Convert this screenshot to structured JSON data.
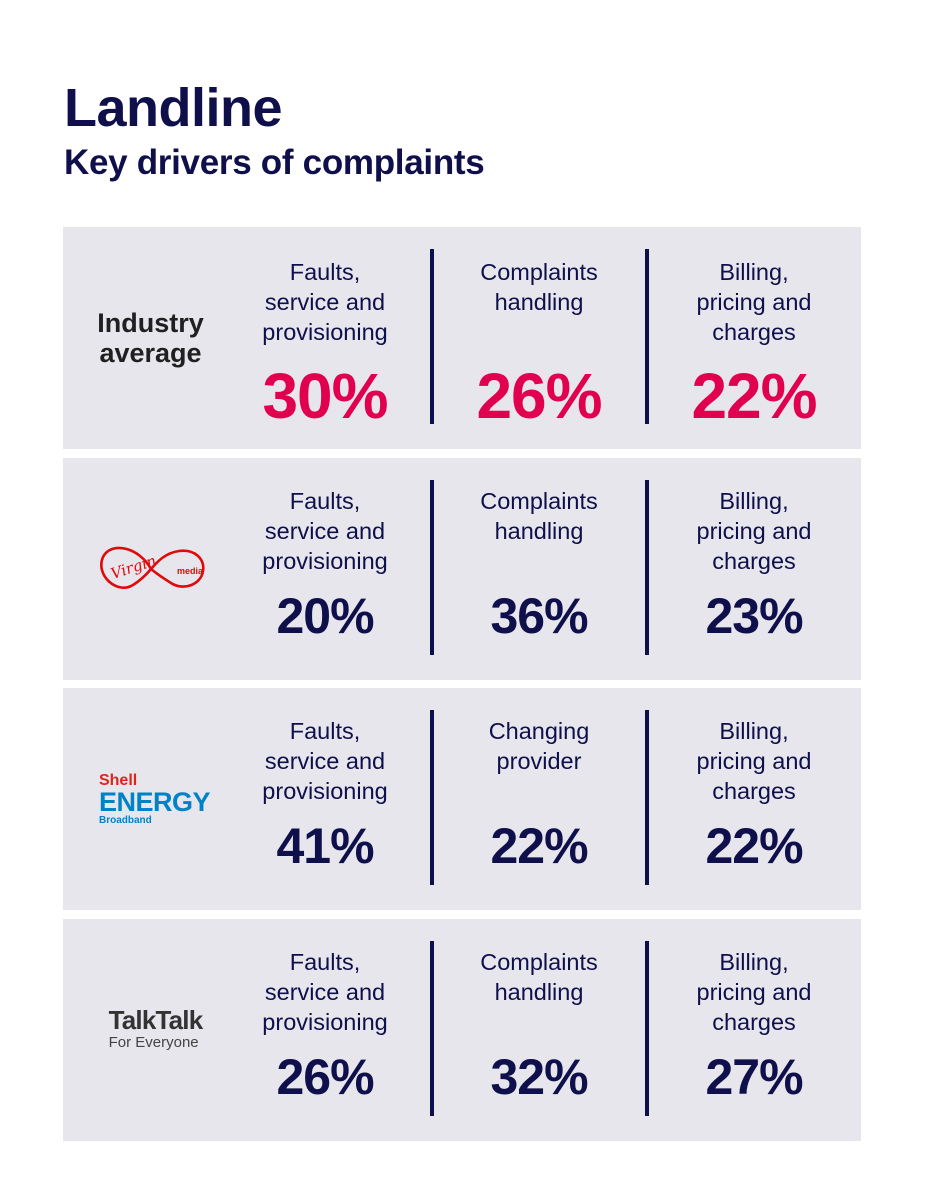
{
  "header": {
    "title": "Landline",
    "subtitle": "Key drivers of complaints"
  },
  "colors": {
    "navy": "#0f0f4b",
    "highlight": "#e0004d",
    "panel_bg": "#e6e6ec"
  },
  "rows": [
    {
      "brand": {
        "line1": "Industry",
        "line2": "average"
      },
      "cells": [
        {
          "label": "Faults,\nservice and\nprovisioning",
          "value": "30%"
        },
        {
          "label": "Complaints\nhandling",
          "value": "26%"
        },
        {
          "label": "Billing,\npricing and\ncharges",
          "value": "22%"
        }
      ]
    },
    {
      "brand": {
        "logo": "virgin-media-logo",
        "script": "Virgin",
        "small": "media"
      },
      "cells": [
        {
          "label": "Faults,\nservice and\nprovisioning",
          "value": "20%"
        },
        {
          "label": "Complaints\nhandling",
          "value": "36%"
        },
        {
          "label": "Billing,\npricing and\ncharges",
          "value": "23%"
        }
      ]
    },
    {
      "brand": {
        "logo": "shell-energy-logo",
        "line1": "Shell",
        "line2": "ENERGY",
        "line3": "Broadband"
      },
      "cells": [
        {
          "label": "Faults,\nservice and\nprovisioning",
          "value": "41%"
        },
        {
          "label": "Changing\nprovider",
          "value": "22%"
        },
        {
          "label": "Billing,\npricing and\ncharges",
          "value": "22%"
        }
      ]
    },
    {
      "brand": {
        "logo": "talktalk-logo",
        "line1": "TalkTalk",
        "line2": "For Everyone"
      },
      "cells": [
        {
          "label": "Faults,\nservice and\nprovisioning",
          "value": "26%"
        },
        {
          "label": "Complaints\nhandling",
          "value": "32%"
        },
        {
          "label": "Billing,\npricing and\ncharges",
          "value": "27%"
        }
      ]
    }
  ]
}
